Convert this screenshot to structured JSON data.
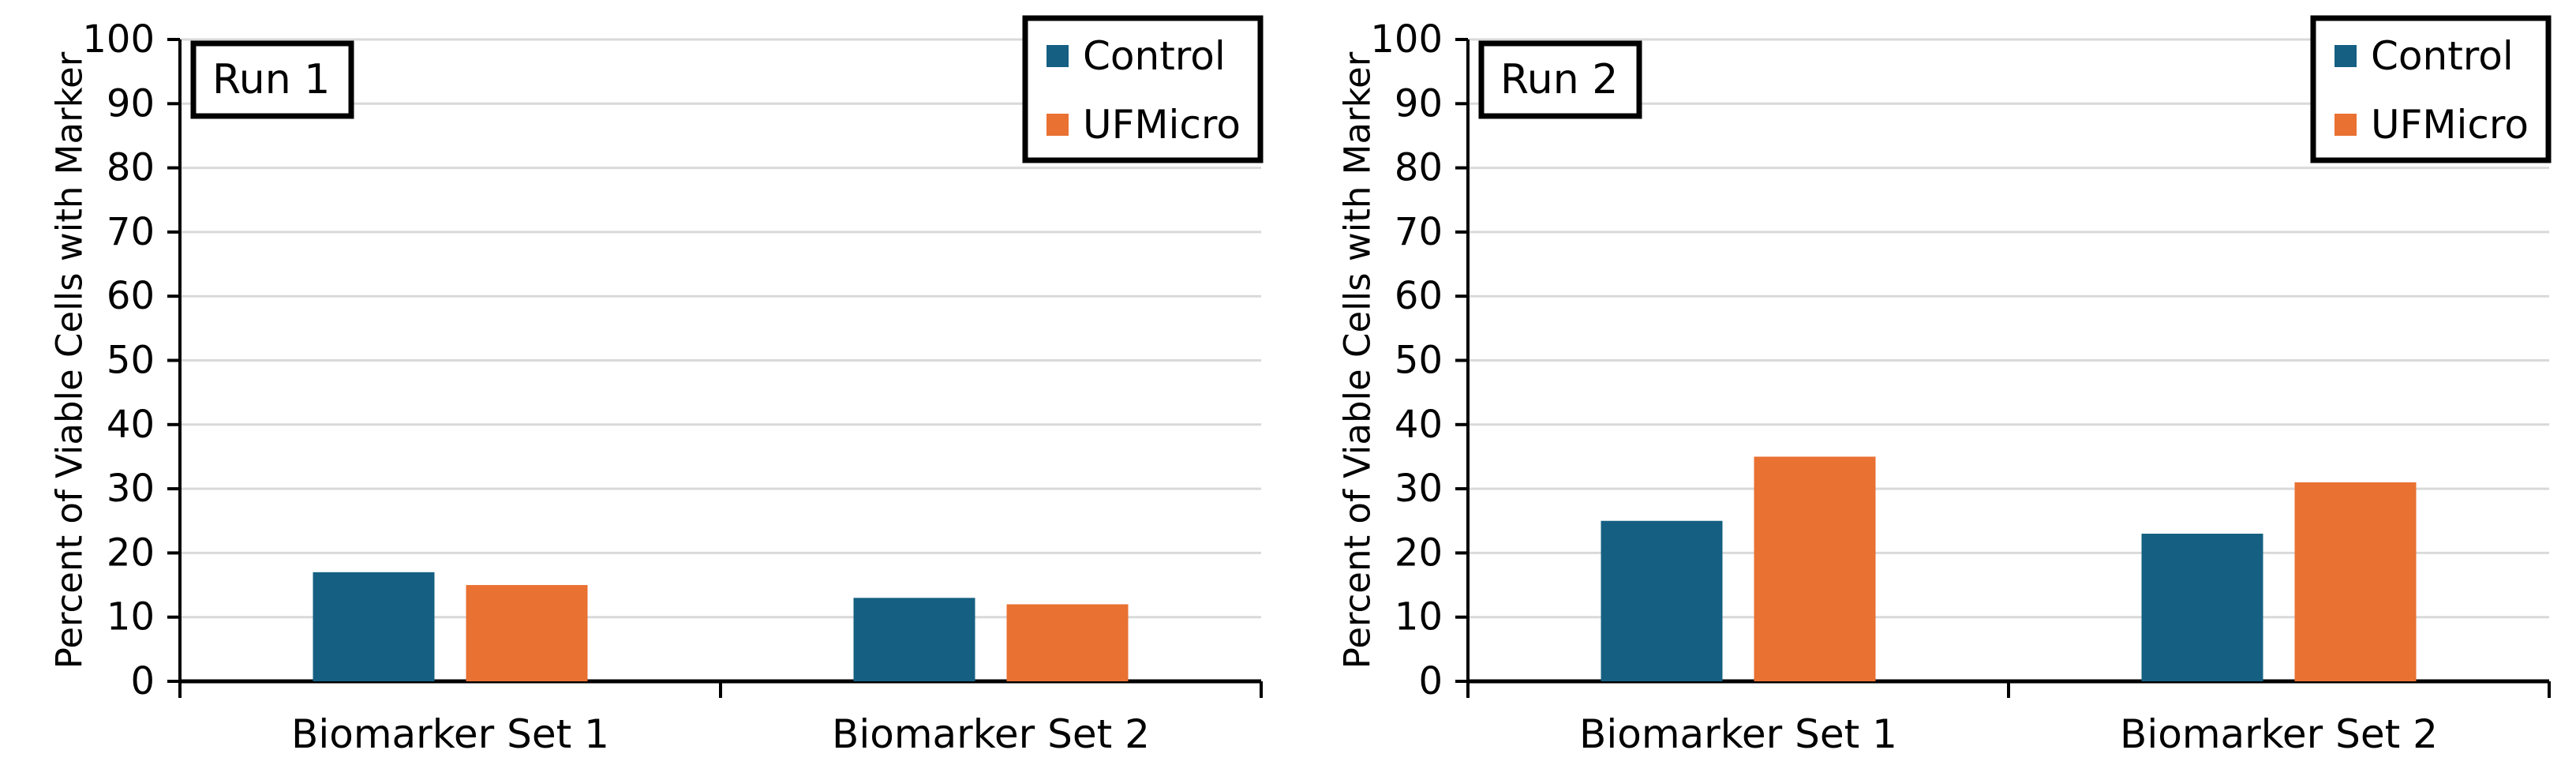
{
  "figure": {
    "background": "#FFFFFF"
  },
  "theme": {
    "grid_color": "#D9D9D9",
    "axis_color": "#000000",
    "text_color": "#000000",
    "box_border_color": "#000000",
    "box_fill_color": "#FFFFFF",
    "control_color": "#156082",
    "ufmicro_color": "#E97132"
  },
  "chart_data": [
    {
      "type": "bar",
      "panel_label": "Run 1",
      "categories": [
        "Biomarker Set 1",
        "Biomarker Set 2"
      ],
      "series": [
        {
          "name": "Control",
          "color": "#156082",
          "values": [
            17,
            13
          ]
        },
        {
          "name": "UFMicro",
          "color": "#E97132",
          "values": [
            15,
            12
          ]
        }
      ],
      "xlabel": "",
      "ylabel": "Percent of Viable Cells with Marker",
      "ylim": [
        0,
        100
      ],
      "yticks": [
        0,
        10,
        20,
        30,
        40,
        50,
        60,
        70,
        80,
        90,
        100
      ],
      "grid": true,
      "legend_position": "top-right"
    },
    {
      "type": "bar",
      "panel_label": "Run 2",
      "categories": [
        "Biomarker Set 1",
        "Biomarker Set 2"
      ],
      "series": [
        {
          "name": "Control",
          "color": "#156082",
          "values": [
            25,
            23
          ]
        },
        {
          "name": "UFMicro",
          "color": "#E97132",
          "values": [
            35,
            31
          ]
        }
      ],
      "xlabel": "",
      "ylabel": "Percent of Viable Cells with Marker",
      "ylim": [
        0,
        100
      ],
      "yticks": [
        0,
        10,
        20,
        30,
        40,
        50,
        60,
        70,
        80,
        90,
        100
      ],
      "grid": true,
      "legend_position": "top-right"
    }
  ]
}
